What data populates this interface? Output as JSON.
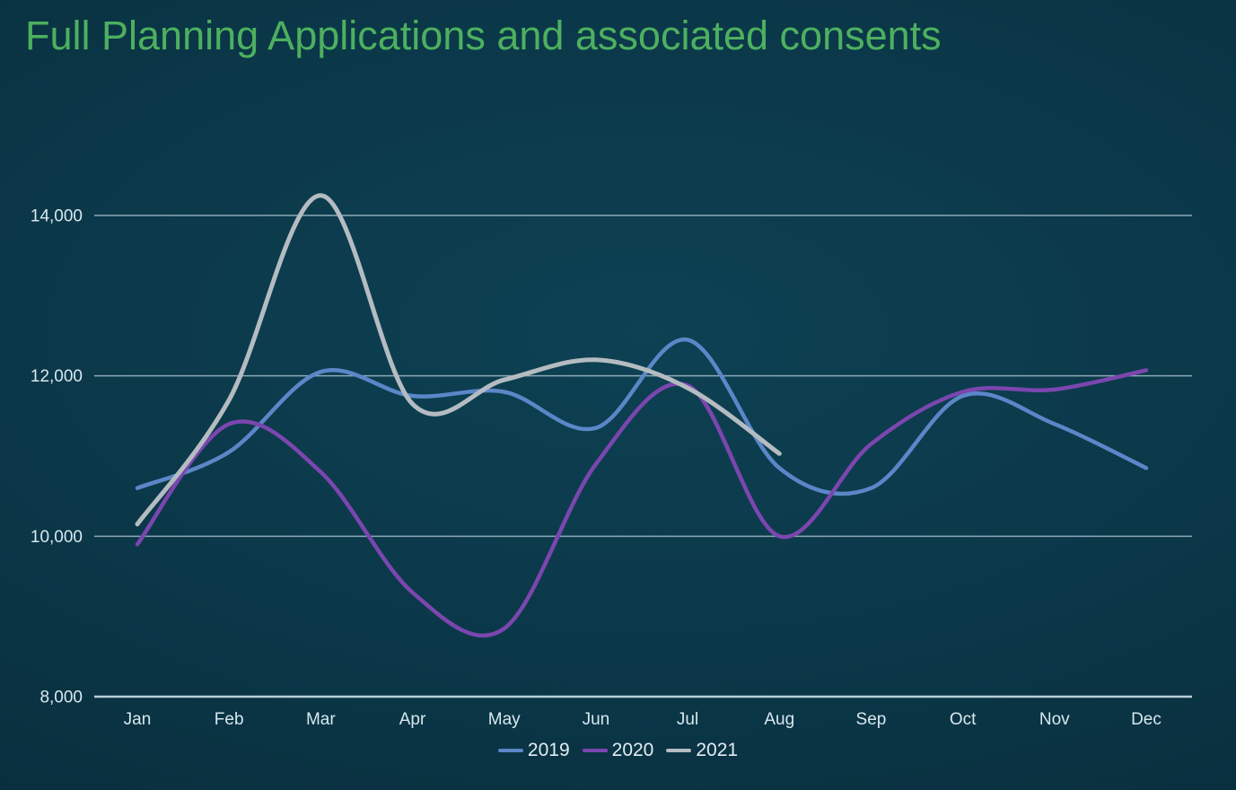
{
  "title": "Full Planning Applications and associated consents",
  "colors": {
    "background_center": "#0d4153",
    "background_edge": "#072735",
    "title": "#4db05f",
    "axis_text": "#d8e8ef",
    "gridline": "#aec6d1",
    "baseline": "#c3d9e2",
    "legend_text": "#e3edf2"
  },
  "chart_data": {
    "type": "line",
    "title": "Full Planning Applications and associated consents",
    "categories": [
      "Jan",
      "Feb",
      "Mar",
      "Apr",
      "May",
      "Jun",
      "Jul",
      "Aug",
      "Sep",
      "Oct",
      "Nov",
      "Dec"
    ],
    "series": [
      {
        "name": "2019",
        "color": "#5b87c8",
        "values": [
          10600,
          11050,
          12050,
          11750,
          11800,
          11350,
          12450,
          10850,
          10600,
          11750,
          11400,
          10850
        ]
      },
      {
        "name": "2020",
        "color": "#7b46af",
        "values": [
          9900,
          11400,
          10800,
          9300,
          8850,
          10900,
          11880,
          10000,
          11150,
          11800,
          11830,
          12070
        ]
      },
      {
        "name": "2021",
        "color": "#b4bcc1",
        "values": [
          10150,
          11700,
          14250,
          11650,
          11950,
          12200,
          11850,
          11030,
          null,
          null,
          null,
          null
        ]
      }
    ],
    "yticks": [
      8000,
      10000,
      12000,
      14000
    ],
    "ytick_labels": [
      "8,000",
      "10,000",
      "12,000",
      "14,000"
    ],
    "ylim": [
      8000,
      14000
    ],
    "grid": "horizontal",
    "legend_position": "bottom",
    "line_style": "smooth"
  }
}
